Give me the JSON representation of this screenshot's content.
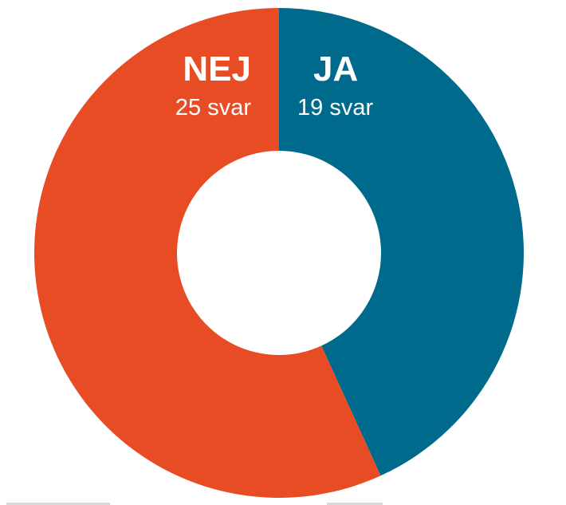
{
  "chart_data": {
    "type": "pie",
    "donut": true,
    "slices": [
      {
        "label": "JA",
        "value": 19,
        "sublabel": "19 svar",
        "color": "#006a8c"
      },
      {
        "label": "NEJ",
        "value": 25,
        "sublabel": "25 svar",
        "color": "#e84c24"
      }
    ],
    "start": "top",
    "direction": "clockwise",
    "legend": "none"
  }
}
